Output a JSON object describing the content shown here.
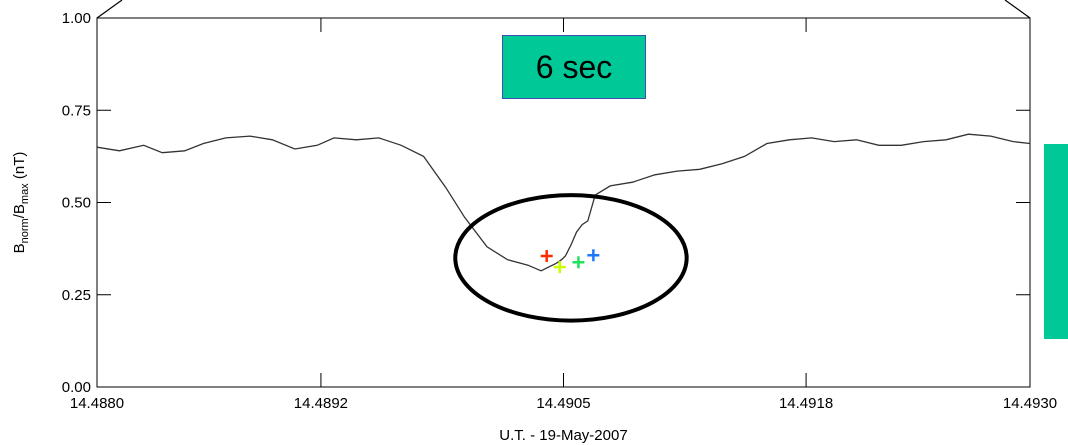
{
  "chart_data": {
    "type": "line",
    "xlabel": "U.T. - 19-May-2007",
    "ylabel": "B_norm/B_max (nT)",
    "ylabel_parts": {
      "main": "B",
      "sub1": "norm",
      "sep": "/B",
      "sub2": "max",
      "unit": " (nT)"
    },
    "xlim": [
      14.488,
      14.493
    ],
    "ylim": [
      0.0,
      1.0
    ],
    "x_ticks": [
      14.488,
      14.4892,
      14.4905,
      14.4918,
      14.493
    ],
    "x_tick_labels": [
      "14.4880",
      "14.4892",
      "14.4905",
      "14.4918",
      "14.4930"
    ],
    "y_ticks": [
      0.0,
      0.25,
      0.5,
      0.75,
      1.0
    ],
    "y_tick_labels": [
      "0.00",
      "0.25",
      "0.50",
      "0.75",
      "1.00"
    ],
    "grid": false,
    "series": [
      {
        "color": "#333333",
        "x": [
          14.488,
          14.48812,
          14.48825,
          14.48835,
          14.48847,
          14.48857,
          14.48869,
          14.48882,
          14.48894,
          14.48906,
          14.48918,
          14.48927,
          14.48939,
          14.48951,
          14.48963,
          14.48975,
          14.48987,
          14.48997,
          14.49009,
          14.4902,
          14.49031,
          14.49038,
          14.49042,
          14.49046,
          14.49049,
          14.49051,
          14.49054,
          14.49057,
          14.4906,
          14.49063,
          14.49067,
          14.49075,
          14.49087,
          14.49099,
          14.49111,
          14.49123,
          14.49135,
          14.49147,
          14.49159,
          14.49171,
          14.49183,
          14.49195,
          14.49207,
          14.49219,
          14.49231,
          14.49243,
          14.49255,
          14.49267,
          14.49279,
          14.49291,
          14.493
        ],
        "y": [
          0.65,
          0.64,
          0.655,
          0.635,
          0.64,
          0.66,
          0.675,
          0.68,
          0.67,
          0.645,
          0.655,
          0.675,
          0.67,
          0.675,
          0.655,
          0.625,
          0.54,
          0.46,
          0.38,
          0.345,
          0.33,
          0.315,
          0.325,
          0.335,
          0.345,
          0.355,
          0.385,
          0.42,
          0.44,
          0.45,
          0.52,
          0.545,
          0.555,
          0.575,
          0.585,
          0.59,
          0.605,
          0.625,
          0.66,
          0.67,
          0.675,
          0.665,
          0.67,
          0.655,
          0.655,
          0.665,
          0.67,
          0.685,
          0.68,
          0.665,
          0.66
        ]
      }
    ],
    "markers": [
      {
        "x": 14.49041,
        "y": 0.355,
        "color": "#ff2a00"
      },
      {
        "x": 14.49048,
        "y": 0.325,
        "color": "#c8ff00"
      },
      {
        "x": 14.49058,
        "y": 0.338,
        "color": "#22e05a"
      },
      {
        "x": 14.49066,
        "y": 0.357,
        "color": "#1e78ff"
      }
    ],
    "annotations": [
      {
        "type": "ellipse",
        "cx": 14.49054,
        "cy": 0.35,
        "rx_units": 0.00062,
        "ry_units": 0.17,
        "color": "#000000"
      }
    ],
    "duration_label": "6 sec",
    "accent": "#00c896"
  }
}
